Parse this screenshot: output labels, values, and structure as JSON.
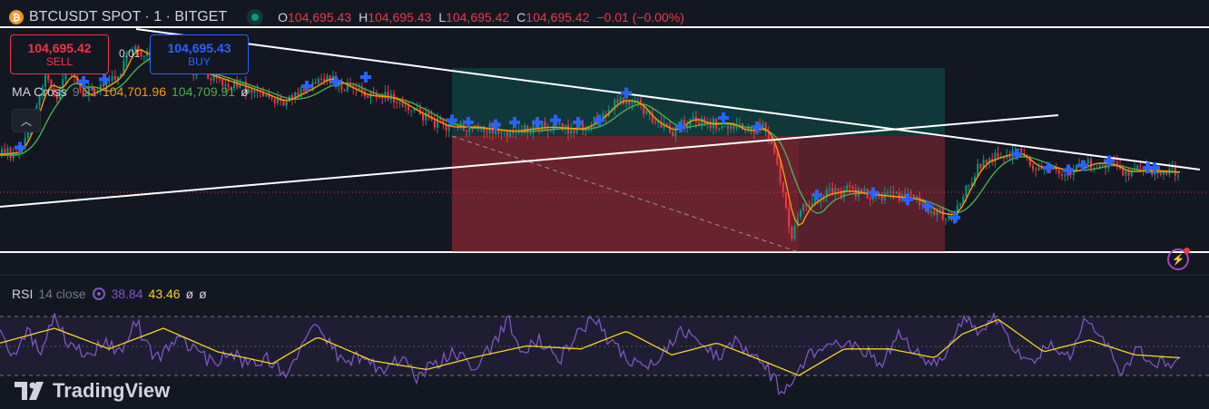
{
  "header": {
    "symbol_line": "BTCUSDT SPOT · 1 · BITGET",
    "icon": "bitcoin-icon",
    "ohlc": [
      {
        "k": "O",
        "v": "104,695.43"
      },
      {
        "k": "H",
        "v": "104,695.43"
      },
      {
        "k": "L",
        "v": "104,695.42"
      },
      {
        "k": "C",
        "v": "104,695.42"
      }
    ],
    "change": "−0.01 (−0.00%)"
  },
  "trade": {
    "sell_price": "104,695.42",
    "sell_label": "SELL",
    "quantity": "0.01",
    "buy_price": "104,695.43",
    "buy_label": "BUY"
  },
  "ma_cross": {
    "name": "MA Cross",
    "params": "9 21",
    "fast": "104,701.96",
    "slow": "104,709.91",
    "extra": "ø"
  },
  "rsi": {
    "name": "RSI",
    "params": "14 close",
    "value": "38.84",
    "ma_value": "43.46",
    "extra1": "ø",
    "extra2": "ø"
  },
  "branding": {
    "logo_text": "TradingView"
  },
  "colors": {
    "background": "#131722",
    "up": "#089981",
    "down": "#f23645",
    "ma_fast": "#ff9800",
    "ma_slow": "#4caf50",
    "rsi": "#7e57c2",
    "rsi_ma": "#f7d51d",
    "signal": "#2962ff"
  },
  "chart_data": {
    "type": "candlestick",
    "price_path": [
      [
        0,
        0.56
      ],
      [
        20,
        0.55
      ],
      [
        35,
        0.42
      ],
      [
        50,
        0.22
      ],
      [
        62,
        0.3
      ],
      [
        75,
        0.18
      ],
      [
        90,
        0.31
      ],
      [
        110,
        0.27
      ],
      [
        130,
        0.22
      ],
      [
        145,
        0.08
      ],
      [
        160,
        0.13
      ],
      [
        180,
        0.09
      ],
      [
        200,
        0.18
      ],
      [
        220,
        0.2
      ],
      [
        250,
        0.24
      ],
      [
        280,
        0.28
      ],
      [
        310,
        0.33
      ],
      [
        340,
        0.27
      ],
      [
        360,
        0.22
      ],
      [
        380,
        0.26
      ],
      [
        400,
        0.3
      ],
      [
        430,
        0.31
      ],
      [
        460,
        0.38
      ],
      [
        490,
        0.44
      ],
      [
        520,
        0.44
      ],
      [
        560,
        0.46
      ],
      [
        600,
        0.44
      ],
      [
        640,
        0.45
      ],
      [
        660,
        0.4
      ],
      [
        680,
        0.32
      ],
      [
        700,
        0.33
      ],
      [
        720,
        0.42
      ],
      [
        740,
        0.46
      ],
      [
        760,
        0.4
      ],
      [
        780,
        0.43
      ],
      [
        800,
        0.42
      ],
      [
        820,
        0.46
      ],
      [
        840,
        0.44
      ],
      [
        850,
        0.52
      ],
      [
        860,
        0.68
      ],
      [
        872,
        0.92
      ],
      [
        885,
        0.8
      ],
      [
        905,
        0.74
      ],
      [
        930,
        0.72
      ],
      [
        960,
        0.74
      ],
      [
        990,
        0.75
      ],
      [
        1010,
        0.76
      ],
      [
        1030,
        0.82
      ],
      [
        1050,
        0.83
      ],
      [
        1065,
        0.7
      ],
      [
        1080,
        0.6
      ],
      [
        1100,
        0.57
      ],
      [
        1120,
        0.55
      ],
      [
        1140,
        0.62
      ],
      [
        1160,
        0.62
      ],
      [
        1180,
        0.64
      ],
      [
        1200,
        0.6
      ],
      [
        1220,
        0.6
      ],
      [
        1240,
        0.64
      ],
      [
        1260,
        0.63
      ],
      [
        1300,
        0.64
      ]
    ],
    "rsi_path": [
      [
        0,
        0.35
      ],
      [
        15,
        0.62
      ],
      [
        30,
        0.28
      ],
      [
        45,
        0.55
      ],
      [
        60,
        0.05
      ],
      [
        75,
        0.4
      ],
      [
        95,
        0.7
      ],
      [
        115,
        0.45
      ],
      [
        135,
        0.6
      ],
      [
        150,
        0.05
      ],
      [
        160,
        0.5
      ],
      [
        175,
        0.7
      ],
      [
        195,
        0.4
      ],
      [
        215,
        0.55
      ],
      [
        235,
        0.8
      ],
      [
        255,
        0.6
      ],
      [
        275,
        0.85
      ],
      [
        295,
        0.7
      ],
      [
        315,
        0.95
      ],
      [
        335,
        0.5
      ],
      [
        350,
        0.05
      ],
      [
        365,
        0.55
      ],
      [
        380,
        0.8
      ],
      [
        400,
        0.65
      ],
      [
        420,
        0.95
      ],
      [
        440,
        0.7
      ],
      [
        460,
        1.05
      ],
      [
        480,
        0.8
      ],
      [
        500,
        0.6
      ],
      [
        520,
        0.85
      ],
      [
        540,
        0.55
      ],
      [
        560,
        0.05
      ],
      [
        575,
        0.6
      ],
      [
        595,
        0.4
      ],
      [
        615,
        0.75
      ],
      [
        635,
        0.3
      ],
      [
        655,
        0.0
      ],
      [
        670,
        0.45
      ],
      [
        690,
        0.65
      ],
      [
        710,
        0.95
      ],
      [
        730,
        0.65
      ],
      [
        750,
        0.25
      ],
      [
        770,
        0.4
      ],
      [
        790,
        0.7
      ],
      [
        810,
        0.45
      ],
      [
        830,
        0.6
      ],
      [
        850,
        1.0
      ],
      [
        862,
        1.3
      ],
      [
        880,
        0.85
      ],
      [
        900,
        0.55
      ],
      [
        925,
        0.4
      ],
      [
        950,
        0.55
      ],
      [
        970,
        0.8
      ],
      [
        990,
        0.3
      ],
      [
        1010,
        0.65
      ],
      [
        1030,
        0.85
      ],
      [
        1045,
        0.55
      ],
      [
        1060,
        0.05
      ],
      [
        1080,
        0.25
      ],
      [
        1100,
        0.0
      ],
      [
        1120,
        0.6
      ],
      [
        1140,
        0.75
      ],
      [
        1160,
        0.45
      ],
      [
        1180,
        0.65
      ],
      [
        1195,
        0.1
      ],
      [
        1215,
        0.4
      ],
      [
        1235,
        0.9
      ],
      [
        1255,
        0.55
      ],
      [
        1275,
        0.8
      ],
      [
        1300,
        0.8
      ]
    ],
    "rsi_ma_path": [
      [
        0,
        0.45
      ],
      [
        60,
        0.2
      ],
      [
        120,
        0.55
      ],
      [
        180,
        0.2
      ],
      [
        240,
        0.6
      ],
      [
        300,
        0.8
      ],
      [
        350,
        0.35
      ],
      [
        410,
        0.75
      ],
      [
        470,
        0.9
      ],
      [
        520,
        0.7
      ],
      [
        580,
        0.5
      ],
      [
        640,
        0.55
      ],
      [
        690,
        0.25
      ],
      [
        740,
        0.65
      ],
      [
        790,
        0.45
      ],
      [
        840,
        0.75
      ],
      [
        880,
        1.0
      ],
      [
        930,
        0.55
      ],
      [
        980,
        0.55
      ],
      [
        1030,
        0.7
      ],
      [
        1060,
        0.3
      ],
      [
        1100,
        0.05
      ],
      [
        1150,
        0.6
      ],
      [
        1200,
        0.4
      ],
      [
        1250,
        0.65
      ],
      [
        1300,
        0.7
      ]
    ],
    "buy_signals": [
      [
        22,
        0.53
      ],
      [
        92,
        0.24
      ],
      [
        115,
        0.23
      ],
      [
        338,
        0.26
      ],
      [
        370,
        0.24
      ],
      [
        403,
        0.22
      ],
      [
        498,
        0.41
      ],
      [
        516,
        0.42
      ],
      [
        546,
        0.43
      ],
      [
        567,
        0.42
      ],
      [
        592,
        0.42
      ],
      [
        612,
        0.41
      ],
      [
        637,
        0.42
      ],
      [
        660,
        0.41
      ],
      [
        690,
        0.29
      ],
      [
        750,
        0.44
      ],
      [
        797,
        0.4
      ],
      [
        834,
        0.44
      ],
      [
        900,
        0.74
      ],
      [
        962,
        0.73
      ],
      [
        1000,
        0.76
      ],
      [
        1022,
        0.79
      ],
      [
        1052,
        0.84
      ],
      [
        1120,
        0.56
      ],
      [
        1155,
        0.62
      ],
      [
        1177,
        0.63
      ],
      [
        1193,
        0.61
      ],
      [
        1222,
        0.59
      ],
      [
        1265,
        0.62
      ],
      [
        1272,
        0.62
      ]
    ]
  }
}
